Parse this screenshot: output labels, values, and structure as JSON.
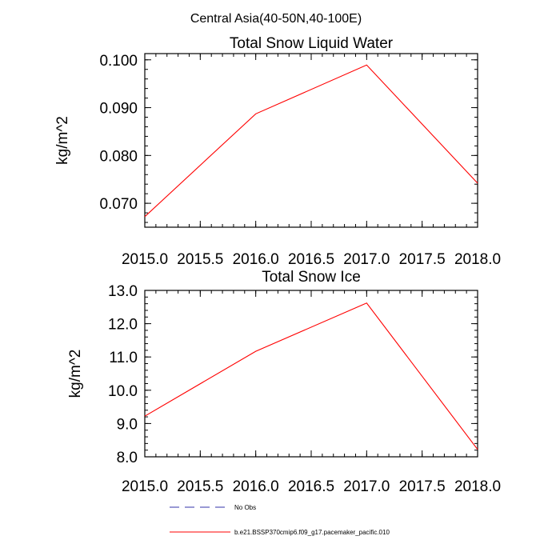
{
  "main_title": "Central Asia(40-50N,40-100E)",
  "chart_data": [
    {
      "type": "line",
      "title": "Total Snow Liquid Water",
      "xlabel": "",
      "ylabel": "kg/m^2",
      "xlim": [
        2015.0,
        2018.0
      ],
      "ylim": [
        0.065,
        0.1013
      ],
      "x_ticks": [
        "2015.0",
        "2015.5",
        "2016.0",
        "2016.5",
        "2017.0",
        "2017.5",
        "2018.0"
      ],
      "y_ticks": [
        "0.070",
        "0.080",
        "0.090",
        "0.100"
      ],
      "series": [
        {
          "name": "b.e21.BSSP370cmip6.f09_g17.pacemaker_pacific.010",
          "color": "#ff0000",
          "x": [
            2015.0,
            2016.0,
            2017.0,
            2018.0
          ],
          "y": [
            0.0672,
            0.0887,
            0.0989,
            0.0742
          ]
        }
      ]
    },
    {
      "type": "line",
      "title": "Total Snow Ice",
      "xlabel": "",
      "ylabel": "kg/m^2",
      "xlim": [
        2015.0,
        2018.0
      ],
      "ylim": [
        8.0,
        13.0
      ],
      "x_ticks": [
        "2015.0",
        "2015.5",
        "2016.0",
        "2016.5",
        "2017.0",
        "2017.5",
        "2018.0"
      ],
      "y_ticks": [
        "8.0",
        "9.0",
        "10.0",
        "11.0",
        "12.0",
        "13.0"
      ],
      "series": [
        {
          "name": "b.e21.BSSP370cmip6.f09_g17.pacemaker_pacific.010",
          "color": "#ff0000",
          "x": [
            2015.0,
            2016.0,
            2017.0,
            2018.0
          ],
          "y": [
            9.22,
            11.17,
            12.62,
            8.22
          ]
        }
      ]
    }
  ],
  "legend": [
    {
      "label": "No Obs",
      "color": "#3333aa",
      "dashed": true
    },
    {
      "label": "b.e21.BSSP370cmip6.f09_g17.pacemaker_pacific.010",
      "color": "#ff0000",
      "dashed": false
    }
  ]
}
